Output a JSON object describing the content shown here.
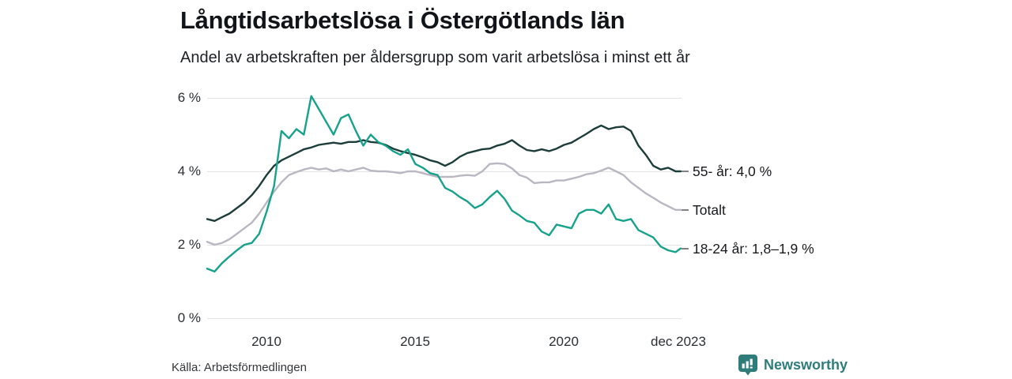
{
  "header": {
    "title": "Långtidsarbetslösa i Östergötlands län",
    "subtitle": "Andel av arbetskraften per åldersgrupp som varit arbetslösa i minst ett år"
  },
  "footer": {
    "source": "Källa: Arbetsförmedlingen",
    "brand": "Newsworthy"
  },
  "colors": {
    "series_55": "#1d3d3a",
    "series_total": "#b9b8c2",
    "series_young": "#17a28b",
    "grid": "#e3e3e7",
    "axis_text": "#2b2f33",
    "brand_teal": "#2e7d7b"
  },
  "chart_data": {
    "type": "line",
    "title": "Långtidsarbetslösa i Östergötlands län",
    "subtitle": "Andel av arbetskraften per åldersgrupp som varit arbetslösa i minst ett år",
    "xlabel": "",
    "ylabel": "",
    "xlim": [
      2008,
      2023.95
    ],
    "ylim": [
      0,
      6.4
    ],
    "grid": "horizontal",
    "legend_position": "right-of-line-ends",
    "y_ticks": [
      {
        "value": 6,
        "label": "6 %"
      },
      {
        "value": 4,
        "label": "4 %"
      },
      {
        "value": 2,
        "label": "2 %"
      },
      {
        "value": 0,
        "label": "0 %"
      }
    ],
    "x_ticks": [
      {
        "value": 2010,
        "label": "2010"
      },
      {
        "value": 2015,
        "label": "2015"
      },
      {
        "value": 2020,
        "label": "2020"
      },
      {
        "value": 2023.92,
        "label": "dec 2023"
      }
    ],
    "x": [
      2008,
      2008.25,
      2008.5,
      2008.75,
      2009,
      2009.25,
      2009.5,
      2009.75,
      2010,
      2010.25,
      2010.5,
      2010.75,
      2011,
      2011.25,
      2011.5,
      2011.75,
      2012,
      2012.25,
      2012.5,
      2012.75,
      2013,
      2013.25,
      2013.5,
      2013.75,
      2014,
      2014.25,
      2014.5,
      2014.75,
      2015,
      2015.25,
      2015.5,
      2015.75,
      2016,
      2016.25,
      2016.5,
      2016.75,
      2017,
      2017.25,
      2017.5,
      2017.75,
      2018,
      2018.25,
      2018.5,
      2018.75,
      2019,
      2019.25,
      2019.5,
      2019.75,
      2020,
      2020.25,
      2020.5,
      2020.75,
      2021,
      2021.25,
      2021.5,
      2021.75,
      2022,
      2022.25,
      2022.5,
      2022.75,
      2023,
      2023.25,
      2023.5,
      2023.75,
      2023.92
    ],
    "series": [
      {
        "id": "55-ar",
        "name": "55- år",
        "label": "55- år: 4,0 %",
        "final_value": "4,0 %",
        "color": "#1d3d3a",
        "values": [
          2.7,
          2.65,
          2.75,
          2.85,
          3.0,
          3.15,
          3.35,
          3.6,
          3.9,
          4.15,
          4.3,
          4.4,
          4.5,
          4.6,
          4.65,
          4.72,
          4.75,
          4.78,
          4.75,
          4.8,
          4.8,
          4.85,
          4.8,
          4.78,
          4.72,
          4.62,
          4.55,
          4.5,
          4.45,
          4.38,
          4.3,
          4.25,
          4.15,
          4.25,
          4.4,
          4.5,
          4.55,
          4.6,
          4.62,
          4.7,
          4.75,
          4.85,
          4.7,
          4.58,
          4.55,
          4.6,
          4.55,
          4.62,
          4.72,
          4.78,
          4.9,
          5.02,
          5.15,
          5.25,
          5.15,
          5.2,
          5.22,
          5.1,
          4.7,
          4.45,
          4.15,
          4.05,
          4.1,
          4.0,
          4.0
        ]
      },
      {
        "id": "totalt",
        "name": "Totalt",
        "label": "Totalt",
        "final_value": "3,0 %",
        "color": "#b9b8c2",
        "values": [
          2.08,
          2.0,
          2.05,
          2.15,
          2.3,
          2.45,
          2.6,
          2.85,
          3.15,
          3.45,
          3.7,
          3.9,
          3.98,
          4.05,
          4.1,
          4.05,
          4.08,
          4.0,
          4.05,
          4.0,
          4.05,
          4.1,
          4.02,
          4.0,
          4.0,
          3.98,
          3.95,
          4.0,
          4.0,
          3.95,
          3.9,
          3.85,
          3.85,
          3.85,
          3.88,
          3.9,
          3.88,
          4.0,
          4.2,
          4.22,
          4.2,
          4.08,
          3.9,
          3.83,
          3.68,
          3.7,
          3.7,
          3.75,
          3.75,
          3.8,
          3.85,
          3.92,
          3.95,
          4.02,
          4.1,
          4.0,
          3.9,
          3.7,
          3.55,
          3.4,
          3.28,
          3.15,
          3.05,
          2.95,
          2.95
        ]
      },
      {
        "id": "18-24-ar",
        "name": "18-24 år",
        "label": "18-24 år: 1,8–1,9 %",
        "final_value": "1,8–1,9 %",
        "color": "#17a28b",
        "values": [
          1.35,
          1.27,
          1.5,
          1.68,
          1.85,
          2.0,
          2.05,
          2.3,
          2.9,
          3.6,
          5.1,
          4.9,
          5.15,
          5.0,
          6.05,
          5.7,
          5.35,
          5.0,
          5.45,
          5.55,
          5.1,
          4.7,
          5.0,
          4.8,
          4.7,
          4.55,
          4.45,
          4.6,
          4.2,
          4.1,
          3.95,
          3.9,
          3.55,
          3.45,
          3.3,
          3.18,
          3.0,
          3.1,
          3.3,
          3.47,
          3.25,
          2.93,
          2.8,
          2.65,
          2.6,
          2.36,
          2.26,
          2.55,
          2.5,
          2.45,
          2.85,
          2.95,
          2.95,
          2.85,
          3.1,
          2.7,
          2.65,
          2.7,
          2.4,
          2.3,
          2.2,
          1.95,
          1.85,
          1.8,
          1.9
        ]
      }
    ]
  }
}
